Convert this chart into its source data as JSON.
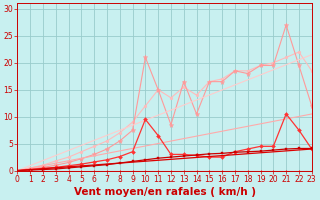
{
  "bg_color": "#c8f0f0",
  "grid_color": "#99cccc",
  "xlabel": "Vent moyen/en rafales ( km/h )",
  "xlim": [
    0,
    23
  ],
  "ylim": [
    0,
    31
  ],
  "yticks": [
    0,
    5,
    10,
    15,
    20,
    25,
    30
  ],
  "xticks": [
    0,
    1,
    2,
    3,
    4,
    5,
    6,
    7,
    8,
    9,
    10,
    11,
    12,
    13,
    14,
    15,
    16,
    17,
    18,
    19,
    20,
    21,
    22,
    23
  ],
  "lines": [
    {
      "x": [
        0,
        1,
        2,
        3,
        4,
        5,
        6,
        7,
        8,
        9,
        10,
        11,
        12,
        13,
        14,
        15,
        16,
        17,
        18,
        19,
        20,
        21,
        22,
        23
      ],
      "y": [
        0,
        0.5,
        1.0,
        1.8,
        2.5,
        3.5,
        4.5,
        5.5,
        7.0,
        9.0,
        12.0,
        15.0,
        13.5,
        15.5,
        14.0,
        16.5,
        17.0,
        18.5,
        18.5,
        19.5,
        20.0,
        21.0,
        22.0,
        18.5
      ],
      "color": "#ffbbbb",
      "lw": 0.8,
      "marker": "o",
      "ms": 2.0
    },
    {
      "x": [
        0,
        1,
        2,
        3,
        4,
        5,
        6,
        7,
        8,
        9,
        10,
        11,
        12,
        13,
        14,
        15,
        16,
        17,
        18,
        19,
        20,
        21,
        22,
        23
      ],
      "y": [
        0,
        0.3,
        0.6,
        1.0,
        1.5,
        2.2,
        3.0,
        4.0,
        5.5,
        7.5,
        21.0,
        15.0,
        8.5,
        16.5,
        10.5,
        16.5,
        16.5,
        18.5,
        18.0,
        19.5,
        19.5,
        27.0,
        19.5,
        12.0
      ],
      "color": "#ff9999",
      "lw": 0.8,
      "marker": "*",
      "ms": 3.5
    },
    {
      "x": [
        0,
        23
      ],
      "y": [
        0,
        10.5
      ],
      "color": "#ffaaaa",
      "lw": 0.8,
      "marker": null,
      "ms": 0
    },
    {
      "x": [
        0,
        23
      ],
      "y": [
        0,
        21.5
      ],
      "color": "#ffcccc",
      "lw": 0.8,
      "marker": null,
      "ms": 0
    },
    {
      "x": [
        0,
        1,
        2,
        3,
        4,
        5,
        6,
        7,
        8,
        9,
        10,
        11,
        12,
        13,
        14,
        15,
        16,
        17,
        18,
        19,
        20,
        21,
        22,
        23
      ],
      "y": [
        0,
        0.2,
        0.4,
        0.6,
        0.9,
        1.2,
        1.6,
        2.0,
        2.6,
        3.5,
        9.5,
        6.5,
        3.0,
        3.0,
        2.8,
        2.5,
        2.5,
        3.5,
        4.0,
        4.5,
        4.5,
        10.5,
        7.5,
        4.0
      ],
      "color": "#ff3333",
      "lw": 0.9,
      "marker": "D",
      "ms": 2.0
    },
    {
      "x": [
        0,
        23
      ],
      "y": [
        0,
        4.0
      ],
      "color": "#dd0000",
      "lw": 0.9,
      "marker": null,
      "ms": 0
    },
    {
      "x": [
        0,
        1,
        2,
        3,
        4,
        5,
        6,
        7,
        8,
        9,
        10,
        11,
        12,
        13,
        14,
        15,
        16,
        17,
        18,
        19,
        20,
        21,
        22,
        23
      ],
      "y": [
        0,
        0.1,
        0.2,
        0.3,
        0.5,
        0.7,
        0.9,
        1.1,
        1.4,
        1.7,
        2.0,
        2.3,
        2.5,
        2.7,
        2.9,
        3.1,
        3.2,
        3.4,
        3.5,
        3.6,
        3.8,
        4.0,
        4.1,
        4.1
      ],
      "color": "#cc0000",
      "lw": 0.9,
      "marker": "s",
      "ms": 1.8
    },
    {
      "x": [
        0,
        1,
        2,
        3,
        4,
        5,
        6,
        7,
        8,
        9,
        10,
        11,
        12,
        13,
        14,
        15,
        16,
        17,
        18,
        19,
        20,
        21,
        22,
        23
      ],
      "y": [
        0,
        0,
        0,
        0,
        0,
        0,
        0,
        0,
        0,
        0,
        0,
        0,
        0,
        0,
        0,
        0,
        0,
        0,
        0,
        0,
        0,
        0,
        0,
        0
      ],
      "color": "#ff5555",
      "lw": 0.8,
      "marker": "^",
      "ms": 2.0
    }
  ],
  "tick_color": "#cc0000",
  "tick_fontsize": 5.5,
  "xlabel_fontsize": 7.5,
  "xlabel_color": "#cc0000"
}
